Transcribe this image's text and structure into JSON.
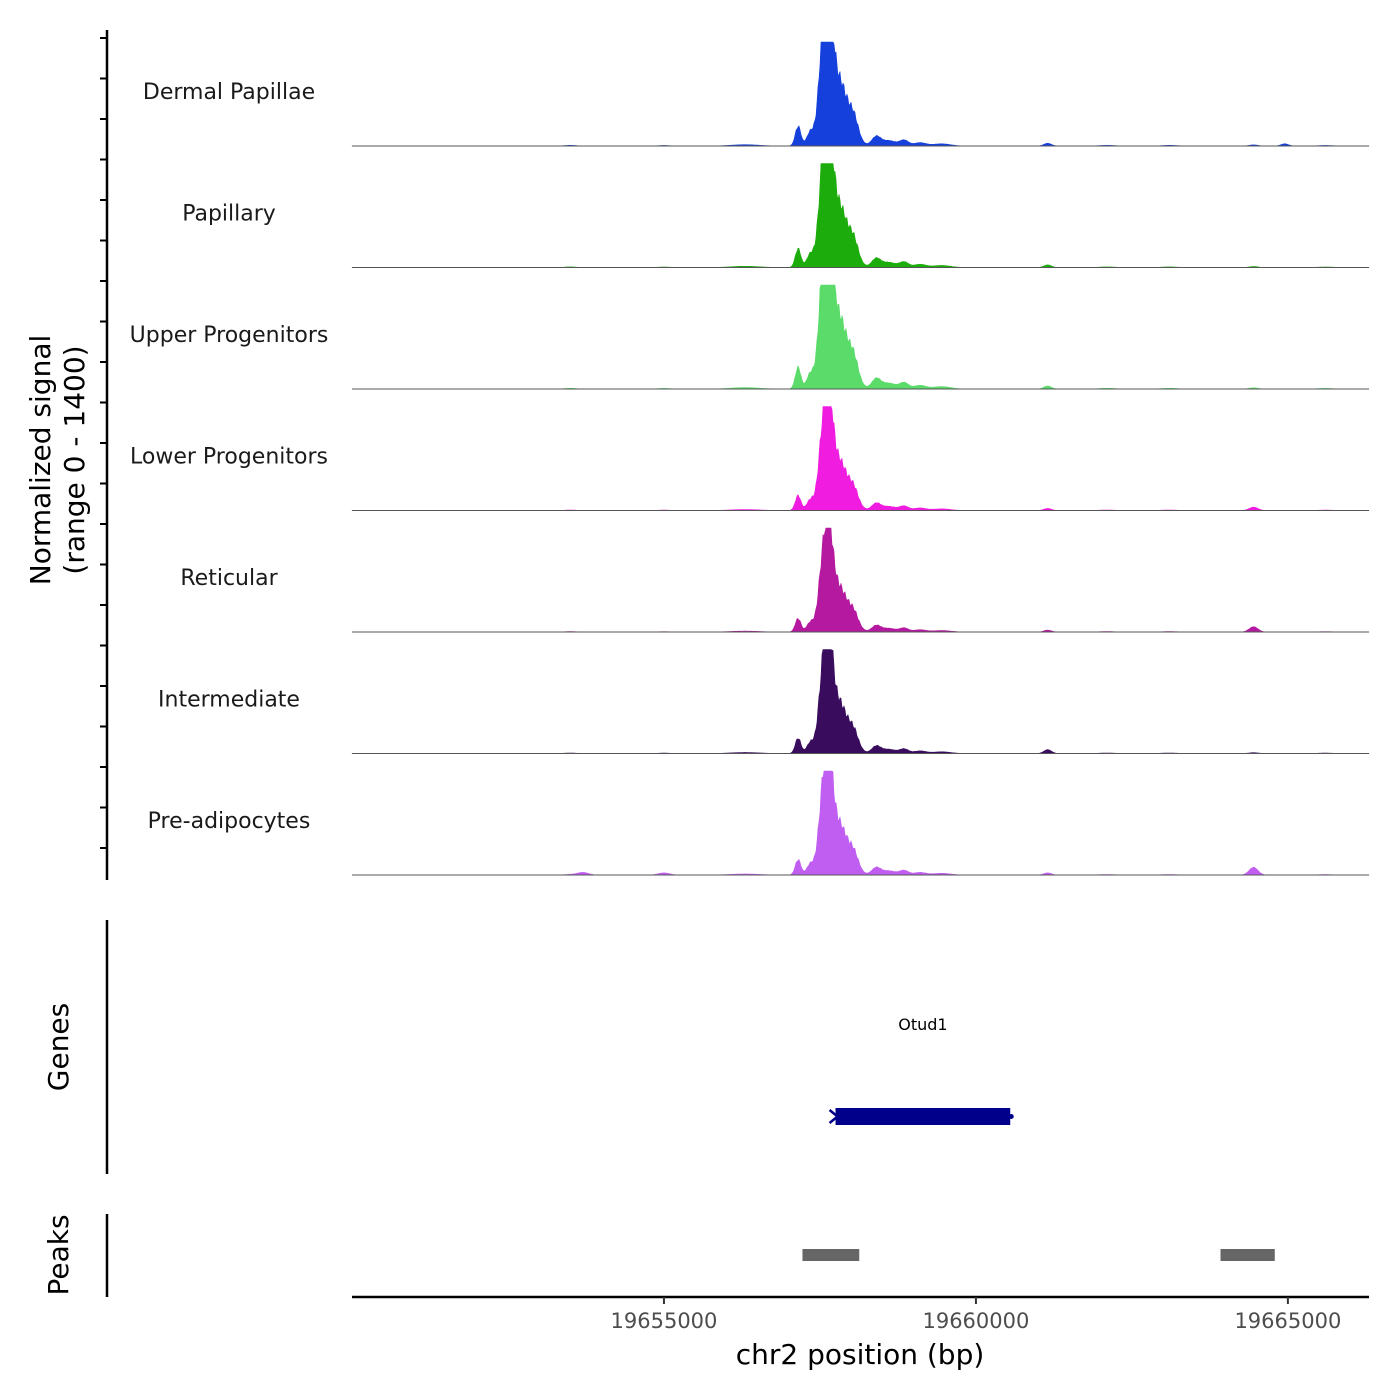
{
  "chart_data": {
    "type": "area",
    "chromosome": "chr2",
    "xlabel": "chr2 position (bp)",
    "ylabel": [
      "Normalized signal",
      "(range 0 - 1400)"
    ],
    "y_range": [
      0,
      1400
    ],
    "xlim": [
      19650000,
      19666300
    ],
    "x_ticks": [
      {
        "value": 19655000,
        "label": "19655000"
      },
      {
        "value": 19660000,
        "label": "19660000"
      },
      {
        "value": 19665000,
        "label": "19665000"
      }
    ],
    "peak_components": [
      {
        "pos": 19657550,
        "w": 70,
        "h": 0.88
      },
      {
        "pos": 19657650,
        "w": 60,
        "h": 0.86
      },
      {
        "pos": 19657750,
        "w": 120,
        "h": 0.45
      },
      {
        "pos": 19657900,
        "w": 140,
        "h": 0.28
      },
      {
        "pos": 19657150,
        "w": 45,
        "h": 0.18
      },
      {
        "pos": 19657350,
        "w": 60,
        "h": 0.13
      },
      {
        "pos": 19658050,
        "w": 70,
        "h": 0.13
      },
      {
        "pos": 19658400,
        "w": 70,
        "h": 0.08
      },
      {
        "pos": 19658600,
        "w": 120,
        "h": 0.05
      },
      {
        "pos": 19658850,
        "w": 70,
        "h": 0.05
      },
      {
        "pos": 19659100,
        "w": 100,
        "h": 0.03
      },
      {
        "pos": 19659450,
        "w": 140,
        "h": 0.02
      },
      {
        "pos": 19656300,
        "w": 220,
        "h": 0.012
      },
      {
        "pos": 19661150,
        "w": 60,
        "h": 0.025
      },
      {
        "pos": 19664450,
        "w": 70,
        "h": 0.01
      },
      {
        "pos": 19653500,
        "w": 90,
        "h": 0.006
      },
      {
        "pos": 19655000,
        "w": 90,
        "h": 0.005
      },
      {
        "pos": 19662100,
        "w": 120,
        "h": 0.006
      },
      {
        "pos": 19663100,
        "w": 120,
        "h": 0.006
      },
      {
        "pos": 19665600,
        "w": 120,
        "h": 0.005
      }
    ],
    "series": [
      {
        "name": "Dermal Papillae",
        "color": "#1540DB",
        "scale": 1.05,
        "extra": [
          {
            "pos": 19664950,
            "w": 60,
            "h": 0.02
          }
        ]
      },
      {
        "name": "Papillary",
        "color": "#1CAC0B",
        "scale": 1.0,
        "extra": []
      },
      {
        "name": "Upper Progenitors",
        "color": "#5BDB6A",
        "scale": 1.15,
        "extra": []
      },
      {
        "name": "Lower Progenitors",
        "color": "#F01CE0",
        "scale": 0.8,
        "extra": [
          {
            "pos": 19664450,
            "w": 70,
            "h": 0.03
          }
        ]
      },
      {
        "name": "Reticular",
        "color": "#B4199F",
        "scale": 0.72,
        "extra": [
          {
            "pos": 19664450,
            "w": 70,
            "h": 0.06
          }
        ]
      },
      {
        "name": "Intermediate",
        "color": "#3A0C5E",
        "scale": 0.82,
        "extra": [
          {
            "pos": 19661150,
            "w": 60,
            "h": 0.02
          }
        ]
      },
      {
        "name": "Pre-adipocytes",
        "color": "#C15EF2",
        "scale": 0.82,
        "extra": [
          {
            "pos": 19664450,
            "w": 70,
            "h": 0.08
          },
          {
            "pos": 19653700,
            "w": 90,
            "h": 0.03
          },
          {
            "pos": 19655000,
            "w": 90,
            "h": 0.02
          }
        ]
      }
    ],
    "genes_track": {
      "label": "Genes",
      "genes": [
        {
          "name": "Otud1",
          "start": 19657750,
          "end": 19660550,
          "strand": "-",
          "color": "#00008B"
        }
      ]
    },
    "peaks_track": {
      "label": "Peaks",
      "color": "#666666",
      "peaks": [
        {
          "start": 19657220,
          "end": 19658130
        },
        {
          "start": 19663920,
          "end": 19664790
        }
      ]
    }
  }
}
